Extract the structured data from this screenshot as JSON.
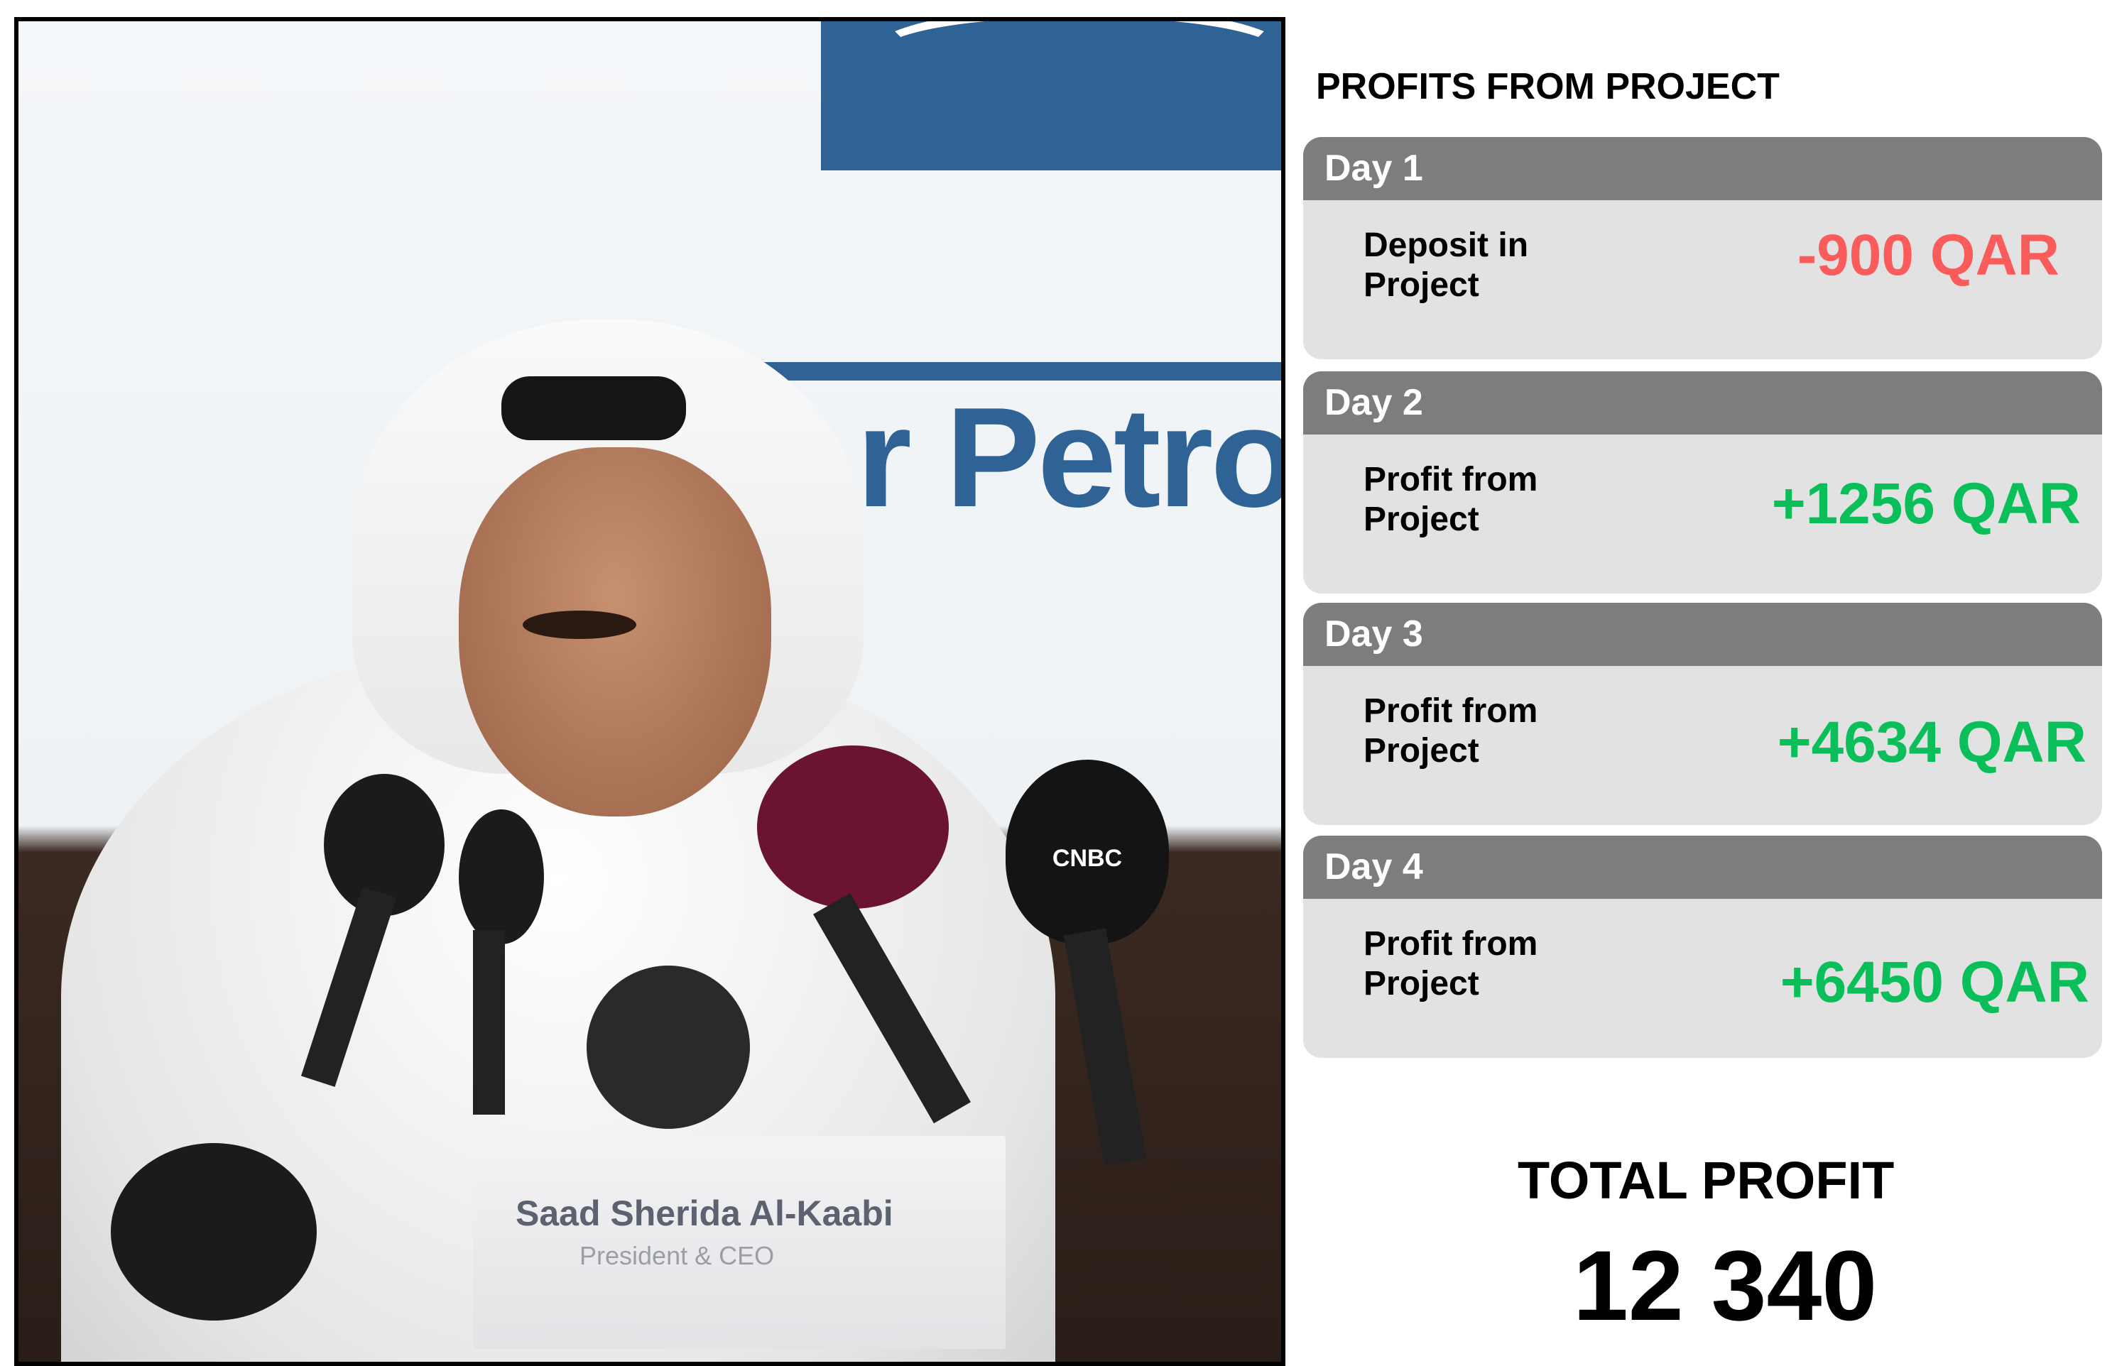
{
  "photo": {
    "logo_text": "r Petrol",
    "nameplate_name": "Saad Sherida Al-Kaabi",
    "nameplate_title": "President & CEO",
    "mic_brand": "CNBC"
  },
  "panel": {
    "title": "PROFITS FROM PROJECT",
    "days": [
      {
        "day": "Day 1",
        "label": "Deposit in Project",
        "value": "-900 QAR",
        "color": "#fa5c5c"
      },
      {
        "day": "Day 2",
        "label": "Profit from Project",
        "value": "+1256 QAR",
        "color": "#0abf5a"
      },
      {
        "day": "Day 3",
        "label": "Profit from Project",
        "value": "+4634 QAR",
        "color": "#0abf5a"
      },
      {
        "day": "Day 4",
        "label": "Profit from Project",
        "value": "+6450 QAR",
        "color": "#0abf5a"
      }
    ],
    "total_label": "TOTAL PROFIT",
    "total_value": "12 340"
  }
}
